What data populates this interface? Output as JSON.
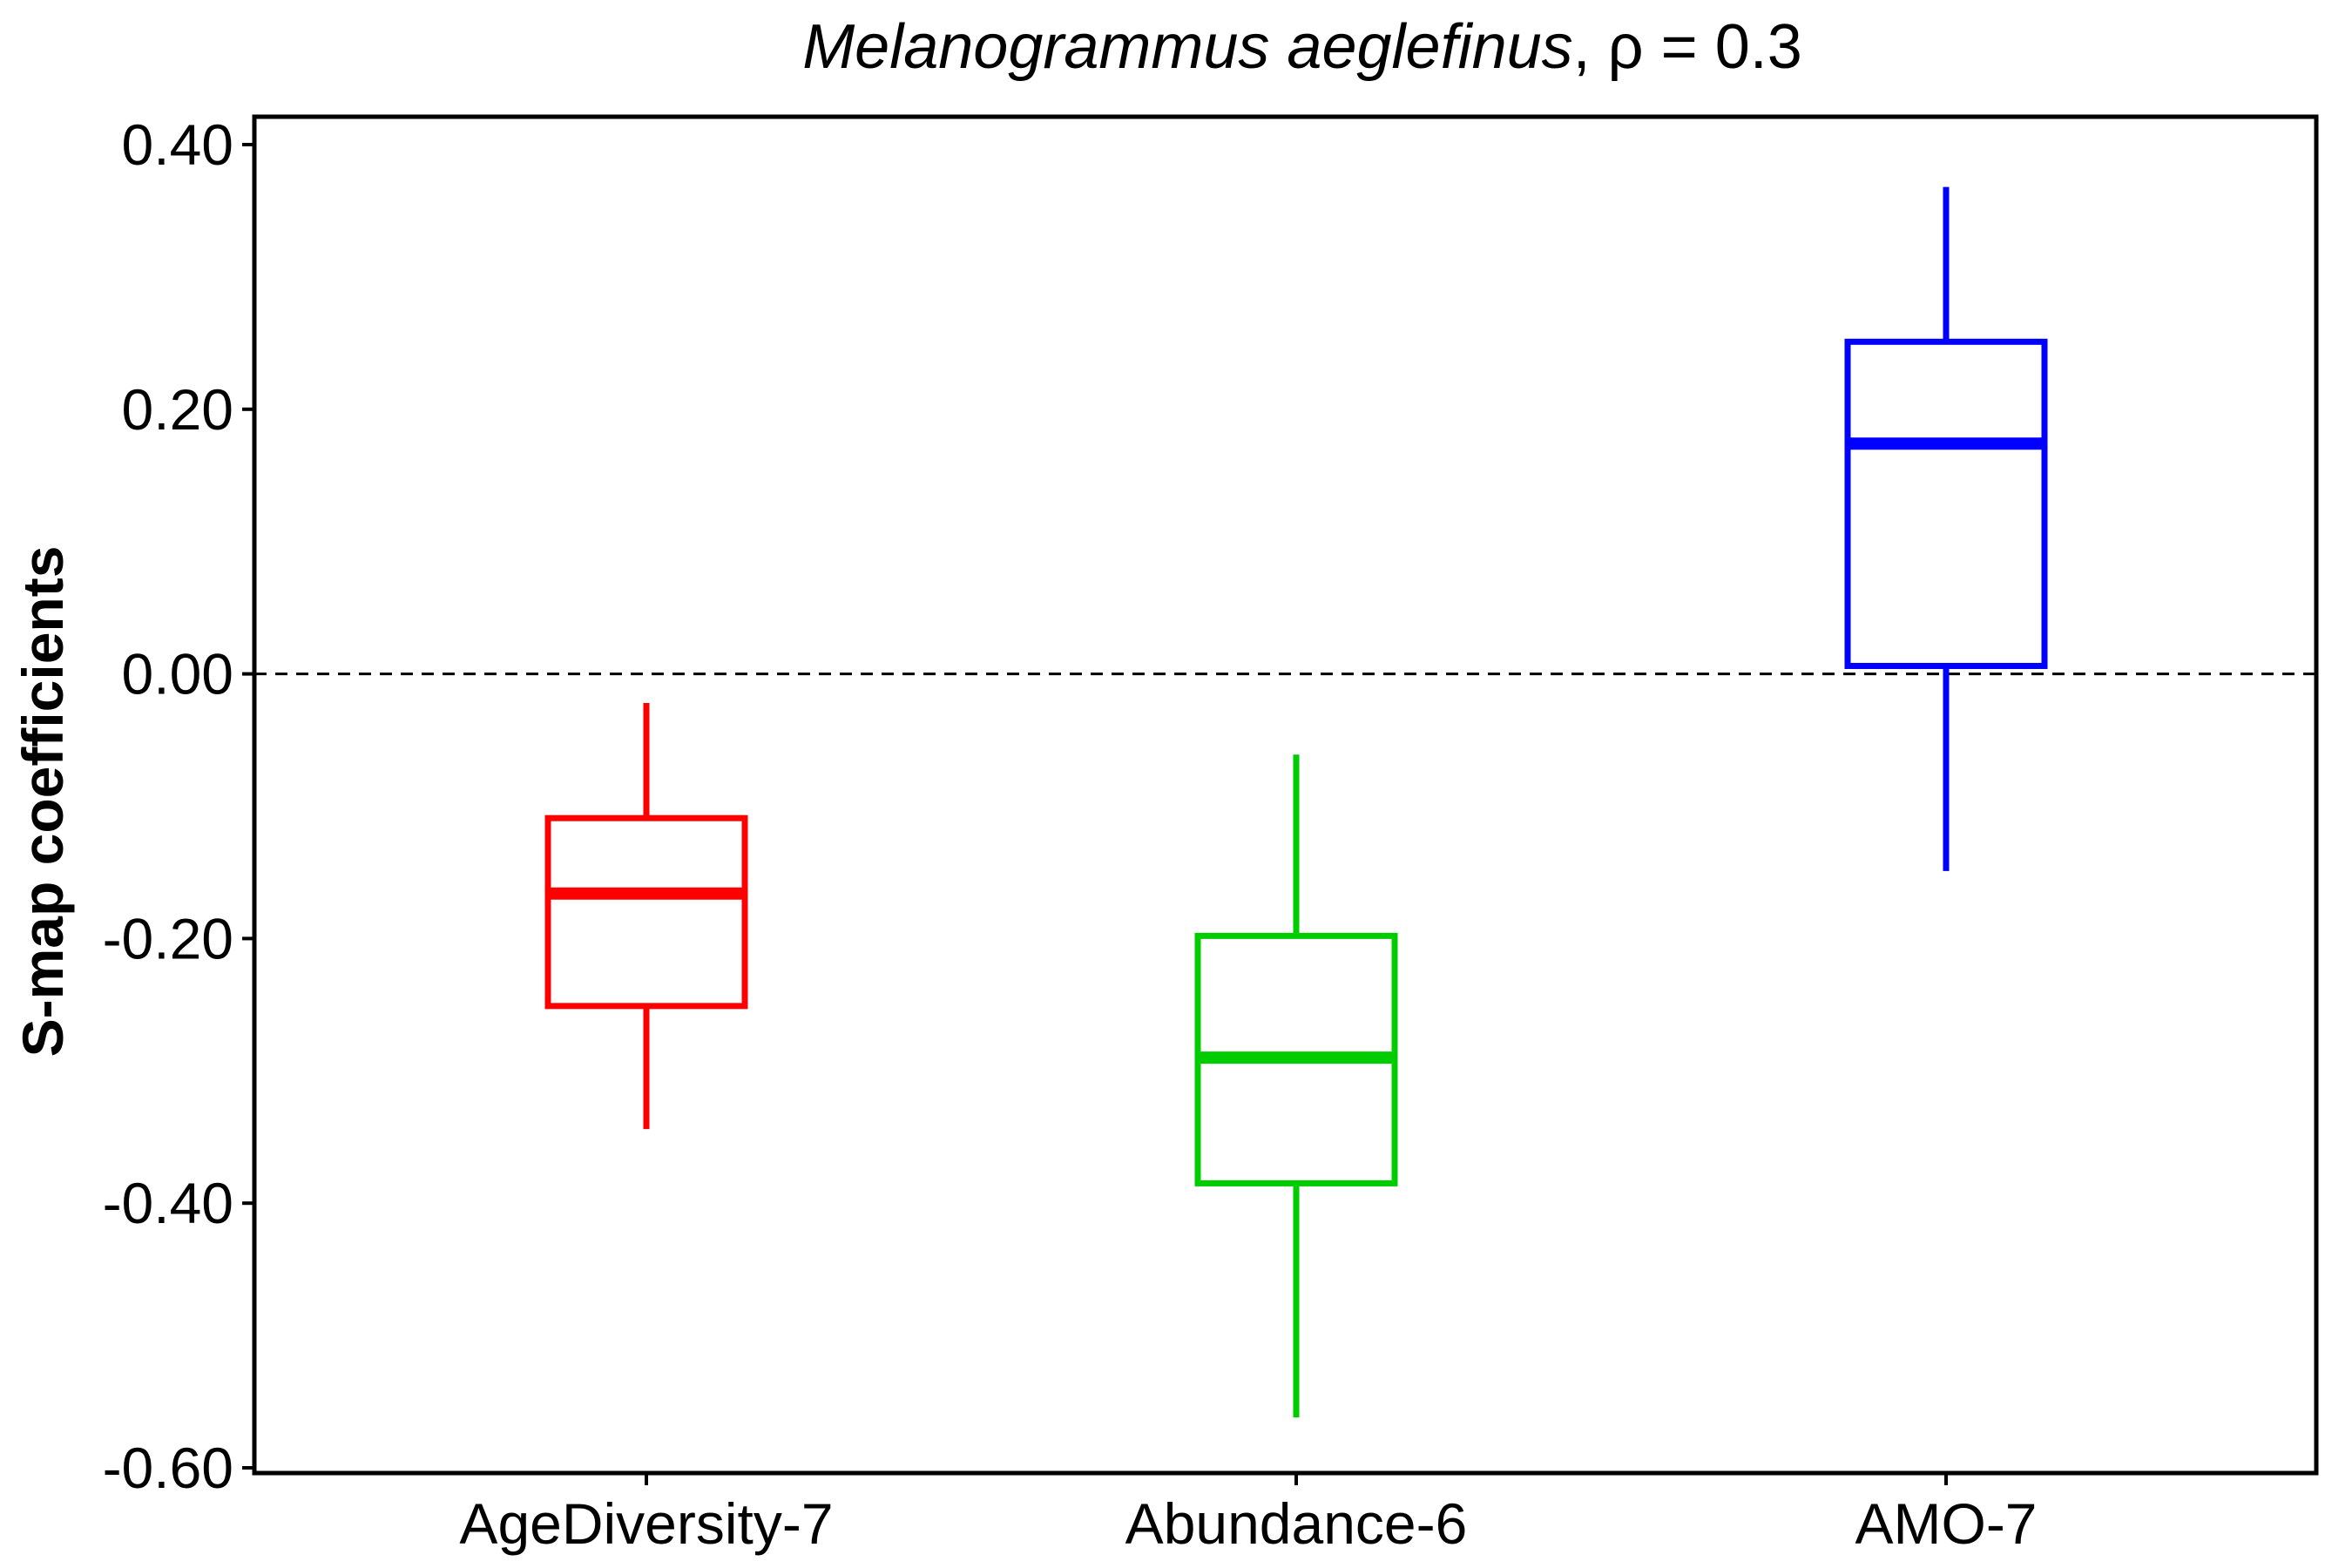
{
  "chart_data": {
    "type": "boxplot",
    "title": {
      "species": "Melanogrammus aeglefinus",
      "suffix": ", ρ = 0.3"
    },
    "xlabel": "",
    "ylabel": "S-map coefficients",
    "ylim": [
      -0.6,
      0.4
    ],
    "yticks": [
      -0.6,
      -0.4,
      -0.2,
      0.0,
      0.2,
      0.4
    ],
    "ytick_labels": [
      "-0.60",
      "-0.40",
      "-0.20",
      "0.00",
      "0.20",
      "0.40"
    ],
    "reference_line": {
      "y": 0.0,
      "style": "dashed",
      "color": "#000000"
    },
    "grid": false,
    "categories": [
      "AgeDiversity-7",
      "Abundance-6",
      "AMO-7"
    ],
    "boxes": [
      {
        "category": "AgeDiversity-7",
        "whisker_low": -0.344,
        "q1": -0.251,
        "median": -0.166,
        "q3": -0.109,
        "whisker_high": -0.022,
        "color": "#ff0000"
      },
      {
        "category": "Abundance-6",
        "whisker_low": -0.562,
        "q1": -0.385,
        "median": -0.29,
        "q3": -0.198,
        "whisker_high": -0.061,
        "color": "#00cc00"
      },
      {
        "category": "AMO-7",
        "whisker_low": -0.149,
        "q1": 0.006,
        "median": 0.174,
        "q3": 0.251,
        "whisker_high": 0.368,
        "color": "#0000ff"
      }
    ]
  }
}
